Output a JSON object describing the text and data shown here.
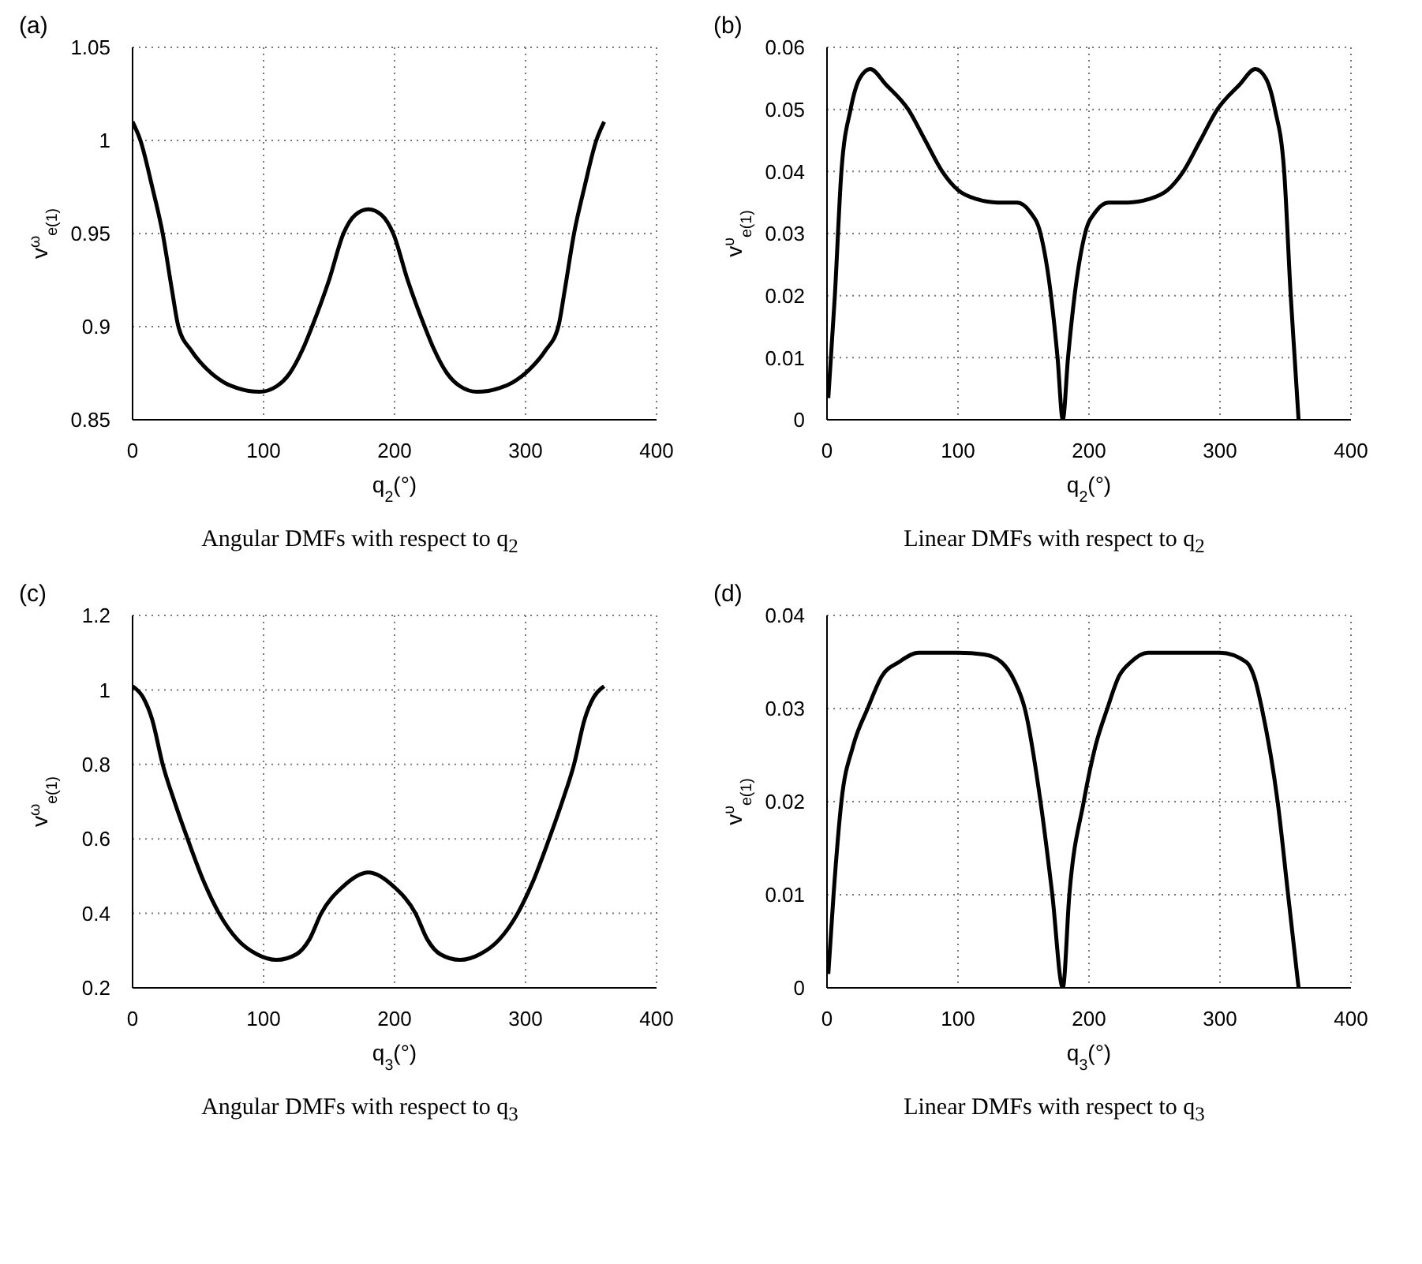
{
  "chart_data": [
    {
      "type": "line",
      "title": "(a)",
      "xlabel": "q$_{2}$(°)",
      "ylabel": "v$^{ω}$$_{e(1)}$",
      "annotations": [
        "Angular DMFs with respect to q$_{2}$"
      ],
      "xlim": [
        0,
        400
      ],
      "xticks": [
        0,
        100,
        200,
        300,
        400
      ],
      "ylim": [
        0.85,
        1.05
      ],
      "yticks": [
        0.85,
        0.9,
        0.95,
        1,
        1.05
      ],
      "grid": true,
      "line_style": "solid",
      "marker": "none",
      "series": [
        {
          "color": "#000000",
          "x": [
            0,
            6,
            15,
            23,
            30,
            35,
            45,
            57,
            70,
            80,
            97,
            110,
            120,
            130,
            137,
            150,
            161,
            170,
            180,
            190,
            199,
            210,
            223,
            230,
            240,
            250,
            263,
            280,
            290,
            303,
            315,
            325,
            330,
            337,
            345,
            354,
            360
          ],
          "values": [
            1.01,
            1.0,
            0.975,
            0.95,
            0.92,
            0.9,
            0.887,
            0.877,
            0.87,
            0.867,
            0.865,
            0.868,
            0.875,
            0.888,
            0.9,
            0.925,
            0.95,
            0.96,
            0.963,
            0.96,
            0.95,
            0.925,
            0.9,
            0.888,
            0.875,
            0.868,
            0.865,
            0.867,
            0.87,
            0.877,
            0.887,
            0.9,
            0.92,
            0.95,
            0.975,
            1.0,
            1.01
          ]
        }
      ]
    },
    {
      "type": "line",
      "title": "(b)",
      "xlabel": "q$_{2}$(°)",
      "ylabel": "v$^{υ}$$_{e(1)}$",
      "annotations": [
        "Linear DMFs with respect to q$_{2}$"
      ],
      "xlim": [
        0,
        400
      ],
      "xticks": [
        0,
        100,
        200,
        300,
        400
      ],
      "ylim": [
        0,
        0.06
      ],
      "yticks": [
        0,
        0.01,
        0.02,
        0.03,
        0.04,
        0.05,
        0.06
      ],
      "grid": true,
      "line_style": "solid",
      "marker": "none",
      "series": [
        {
          "color": "#000000",
          "x": [
            1,
            6,
            11,
            18,
            25,
            33,
            45,
            62,
            75,
            88,
            100,
            115,
            130,
            145,
            155,
            163,
            171,
            176,
            180,
            184,
            189,
            197,
            205,
            215,
            230,
            245,
            260,
            272,
            285,
            298,
            315,
            327,
            335,
            342,
            349,
            354,
            357,
            360
          ],
          "values": [
            0.0035,
            0.02,
            0.04,
            0.05,
            0.055,
            0.0565,
            0.054,
            0.05,
            0.045,
            0.04,
            0.037,
            0.0355,
            0.035,
            0.035,
            0.0335,
            0.03,
            0.02,
            0.01,
            0,
            0.01,
            0.02,
            0.03,
            0.0335,
            0.035,
            0.035,
            0.0355,
            0.037,
            0.04,
            0.045,
            0.05,
            0.054,
            0.0565,
            0.055,
            0.05,
            0.04,
            0.02,
            0.01,
            0
          ]
        }
      ]
    },
    {
      "type": "line",
      "title": "(c)",
      "xlabel": "q$_{3}$(°)",
      "ylabel": "v$^{ω}$$_{e(1)}$",
      "annotations": [
        "Angular DMFs with respect to q$_{3}$"
      ],
      "xlim": [
        0,
        400
      ],
      "xticks": [
        0,
        100,
        200,
        300,
        400
      ],
      "ylim": [
        0.2,
        1.2
      ],
      "yticks": [
        0.2,
        0.4,
        0.6,
        0.8,
        1,
        1.2
      ],
      "grid": true,
      "line_style": "solid",
      "marker": "none",
      "series": [
        {
          "color": "#000000",
          "x": [
            0,
            8,
            15,
            23,
            32,
            42,
            55,
            66,
            80,
            95,
            110,
            125,
            135,
            144,
            160,
            180,
            200,
            216,
            225,
            235,
            250,
            265,
            280,
            294,
            305,
            318,
            328,
            337,
            345,
            352,
            360
          ],
          "values": [
            1.01,
            0.98,
            0.92,
            0.8,
            0.7,
            0.6,
            0.48,
            0.4,
            0.33,
            0.29,
            0.275,
            0.29,
            0.33,
            0.4,
            0.47,
            0.51,
            0.47,
            0.4,
            0.33,
            0.29,
            0.275,
            0.29,
            0.33,
            0.4,
            0.48,
            0.6,
            0.7,
            0.8,
            0.92,
            0.98,
            1.01
          ]
        }
      ]
    },
    {
      "type": "line",
      "title": "(d)",
      "xlabel": "q$_{3}$(°)",
      "ylabel": "v$^{υ}$$_{e(1)}$",
      "annotations": [
        "Linear DMFs with respect to q$_{3}$"
      ],
      "xlim": [
        0,
        400
      ],
      "xticks": [
        0,
        100,
        200,
        300,
        400
      ],
      "ylim": [
        0,
        0.04
      ],
      "yticks": [
        0,
        0.01,
        0.02,
        0.03,
        0.04
      ],
      "grid": true,
      "line_style": "solid",
      "marker": "none",
      "series": [
        {
          "color": "#000000",
          "x": [
            1,
            5,
            11,
            20,
            31,
            42,
            55,
            70,
            100,
            120,
            133,
            143,
            151,
            163,
            172,
            180,
            185,
            196,
            205,
            214,
            223,
            232,
            245,
            275,
            300,
            320,
            327,
            332,
            344,
            352,
            360
          ],
          "values": [
            0.0015,
            0.01,
            0.02,
            0.026,
            0.03,
            0.0335,
            0.035,
            0.036,
            0.036,
            0.0358,
            0.035,
            0.033,
            0.03,
            0.02,
            0.01,
            0,
            0.01,
            0.02,
            0.026,
            0.03,
            0.0335,
            0.035,
            0.036,
            0.036,
            0.036,
            0.035,
            0.033,
            0.03,
            0.02,
            0.01,
            0
          ]
        }
      ]
    }
  ]
}
